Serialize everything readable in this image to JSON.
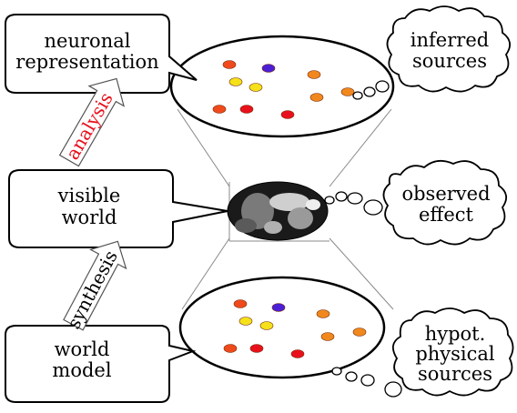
{
  "boxes": {
    "neuronal": {
      "line1": "neuronal",
      "line2": "representation"
    },
    "visible": {
      "line1": "visible",
      "line2": "world"
    },
    "model": {
      "line1": "world",
      "line2": "model"
    }
  },
  "arrows": {
    "analysis": {
      "label": "analysis",
      "color": "#e8101a"
    },
    "synthesis": {
      "label": "synthesis",
      "color": "#000000"
    }
  },
  "clouds": {
    "inferred": {
      "line1": "inferred",
      "line2": "sources"
    },
    "observed": {
      "line1": "observed",
      "line2": "effect"
    },
    "hypot": {
      "line1": "hypot.",
      "line2": "physical",
      "line3": "sources"
    }
  },
  "dot_colors": {
    "orange_red": "#ef4a1b",
    "blue": "#4a1fd6",
    "yellow": "#f4e11a",
    "orange": "#f0881e",
    "red": "#e8101a"
  },
  "center_image": "flexing-bodybuilder-photo"
}
